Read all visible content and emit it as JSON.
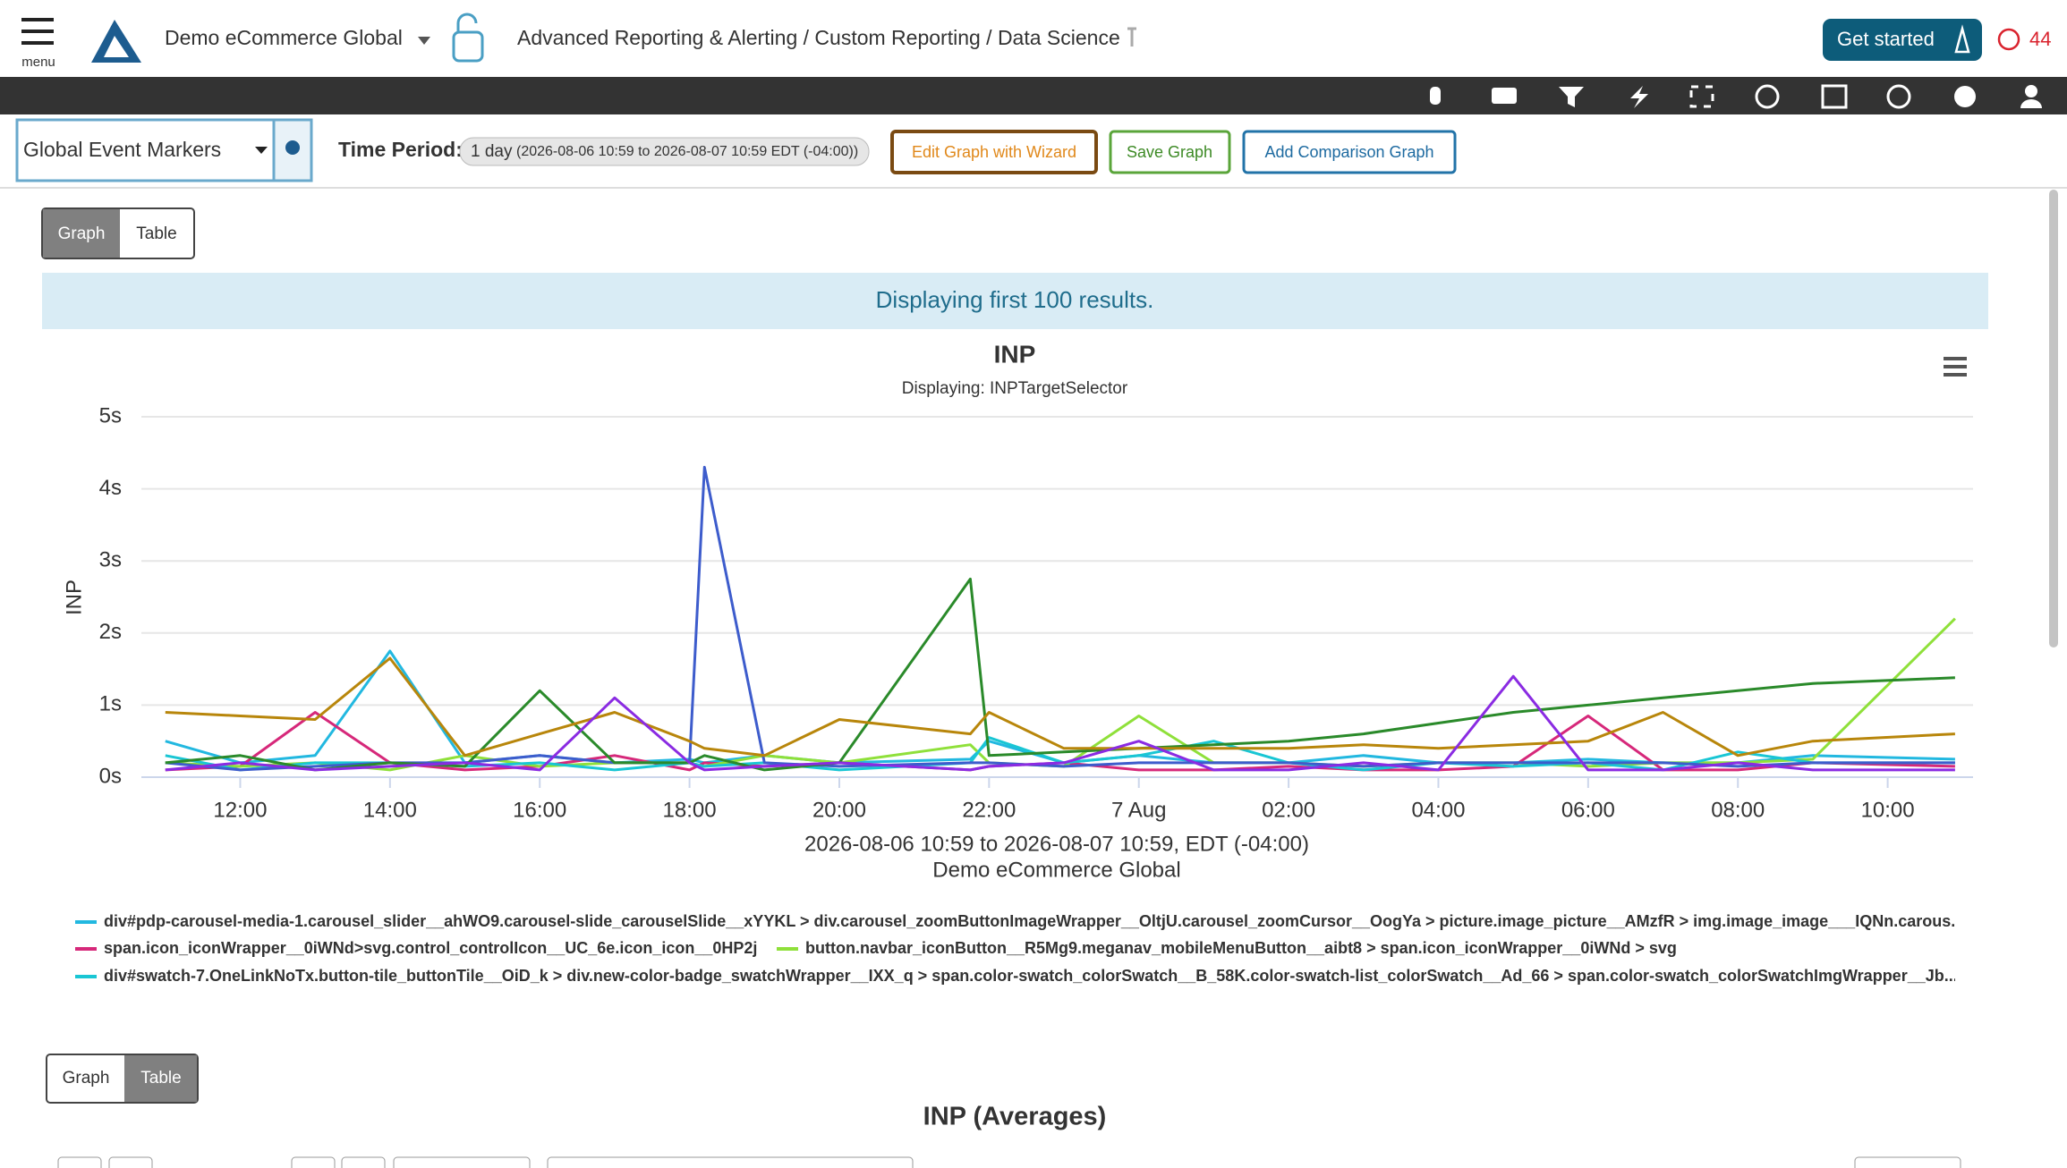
{
  "header": {
    "menu": "menu",
    "account": "Demo eCommerce Global",
    "breadcrumb": "Advanced Reporting & Alerting / Custom Reporting / Data Science",
    "get_started": "Get started",
    "alert_count": "44"
  },
  "toolbar": {
    "markers": "Global Event Markers",
    "time_period_label": "Time Period:",
    "time_period": "1 day",
    "time_range": "(2026-08-06 10:59 to 2026-08-07 10:59 EDT (-04:00))",
    "buttons": [
      "Edit Graph with Wizard",
      "Save Graph",
      "Add Comparison Graph"
    ]
  },
  "view_toggle": [
    "Graph",
    "Table"
  ],
  "notice": "Displaying first 100 results.",
  "chart_data": {
    "type": "line",
    "title": "INP",
    "subtitle": "Displaying: INPTargetSelector",
    "y_label": "INP",
    "x_label": "2026-08-06 10:59 to 2026-08-07 10:59, EDT (-04:00)",
    "x_sublabel": "Demo eCommerce Global",
    "x": [
      11,
      12,
      13,
      14,
      15,
      16,
      17,
      18,
      18.2,
      19,
      20,
      21.75,
      22,
      23,
      24,
      25,
      26,
      27,
      28,
      29,
      30,
      31,
      32,
      33,
      34.9
    ],
    "xlim": [
      10.68,
      35.14
    ],
    "xticks": [
      {
        "value": 12,
        "label": "12:00"
      },
      {
        "value": 14,
        "label": "14:00"
      },
      {
        "value": 16,
        "label": "16:00"
      },
      {
        "value": 18,
        "label": "18:00"
      },
      {
        "value": 20,
        "label": "20:00"
      },
      {
        "value": 22,
        "label": "22:00"
      },
      {
        "value": 24,
        "label": "7 Aug"
      },
      {
        "value": 26,
        "label": "02:00"
      },
      {
        "value": 28,
        "label": "04:00"
      },
      {
        "value": 30,
        "label": "06:00"
      },
      {
        "value": 32,
        "label": "08:00"
      },
      {
        "value": 34,
        "label": "10:00"
      }
    ],
    "ylim": [
      0,
      5
    ],
    "yticks": [
      {
        "value": 0,
        "label": "0s"
      },
      {
        "value": 1,
        "label": "1s"
      },
      {
        "value": 2,
        "label": "2s"
      },
      {
        "value": 3,
        "label": "3s"
      },
      {
        "value": 4,
        "label": "4s"
      },
      {
        "value": 5,
        "label": "5s"
      }
    ],
    "grid": true,
    "series": [
      {
        "name": "div#pdp-carousel-media-1.carousel_slider__ahWO9.carousel-slide_carouselSlide__xYYKL > div.carousel_zoomButtonImageWrapper__OltjU.carousel_zoomCursor__OogYa > picture.image_picture__AMzfR > img.image_image___IQNn.carous...",
        "color": "#22b8e0",
        "values": [
          0.5,
          0.2,
          0.3,
          1.75,
          0.2,
          0.3,
          0.2,
          0.25,
          0.2,
          0.3,
          0.2,
          0.25,
          0.5,
          0.2,
          0.3,
          0.2,
          0.2,
          0.3,
          0.2,
          0.2,
          0.25,
          0.2,
          0.2,
          0.3,
          0.25
        ]
      },
      {
        "name": "span.icon_iconWrapper__0iWNd>svg.control_controlIcon__UC_6e.icon_icon__0HP2j",
        "color": "#d6287a",
        "values": [
          0.1,
          0.15,
          0.9,
          0.2,
          0.1,
          0.15,
          0.3,
          0.1,
          0.2,
          0.15,
          0.2,
          0.1,
          0.15,
          0.2,
          0.1,
          0.1,
          0.15,
          0.1,
          0.1,
          0.15,
          0.85,
          0.1,
          0.1,
          0.2,
          0.15
        ]
      },
      {
        "name": "button.navbar_iconButton__R5Mg9.meganav_mobileMenuButton__aibt8 > span.icon_iconWrapper__0iWNd > svg",
        "color": "#8fe03a",
        "values": [
          0.2,
          0.15,
          0.2,
          0.1,
          0.3,
          0.15,
          0.2,
          0.2,
          0.15,
          0.3,
          0.2,
          0.45,
          0.2,
          0.15,
          0.85,
          0.2,
          0.2,
          0.15,
          0.2,
          0.2,
          0.15,
          0.2,
          0.2,
          0.25,
          2.2
        ]
      },
      {
        "name": "div#swatch-7.OneLinkNoTx.button-tile_buttonTile__OiD_k > div.new-color-badge_swatchWrapper__IXX_q > span.color-swatch_colorSwatch__B_58K.color-swatch-list_colorSwatch__Ad_66 > span.color-swatch_colorSwatchImgWrapper__Jb...",
        "color": "#19c6d4",
        "values": [
          0.3,
          0.1,
          0.2,
          0.2,
          0.15,
          0.2,
          0.1,
          0.2,
          0.15,
          0.2,
          0.1,
          0.2,
          0.55,
          0.2,
          0.3,
          0.5,
          0.2,
          0.1,
          0.2,
          0.15,
          0.2,
          0.1,
          0.35,
          0.2,
          0.2
        ]
      },
      {
        "color": "#3d5ccc",
        "values": [
          0.2,
          0.1,
          0.15,
          0.2,
          0.2,
          0.3,
          0.2,
          0.2,
          4.3,
          0.2,
          0.15,
          0.2,
          0.2,
          0.15,
          0.2,
          0.2,
          0.2,
          0.15,
          0.2,
          0.2,
          0.2,
          0.2,
          0.15,
          0.2,
          0.2
        ]
      },
      {
        "color": "#2a8a2a",
        "values": [
          0.2,
          0.3,
          0.1,
          0.2,
          0.15,
          1.2,
          0.2,
          0.2,
          0.3,
          0.1,
          0.2,
          2.75,
          0.3,
          0.35,
          0.4,
          0.45,
          0.5,
          0.6,
          0.75,
          0.9,
          1.0,
          1.1,
          1.2,
          1.3,
          1.38
        ]
      },
      {
        "color": "#b8860b",
        "values": [
          0.9,
          0.85,
          0.8,
          1.65,
          0.3,
          0.6,
          0.9,
          0.5,
          0.4,
          0.3,
          0.8,
          0.6,
          0.9,
          0.4,
          0.4,
          0.4,
          0.4,
          0.45,
          0.4,
          0.45,
          0.5,
          0.9,
          0.3,
          0.5,
          0.6
        ]
      },
      {
        "color": "#8a2be2",
        "values": [
          0.1,
          0.2,
          0.1,
          0.15,
          0.2,
          0.1,
          1.1,
          0.2,
          0.1,
          0.15,
          0.2,
          0.1,
          0.15,
          0.2,
          0.5,
          0.1,
          0.1,
          0.2,
          0.1,
          1.4,
          0.1,
          0.1,
          0.2,
          0.1,
          0.1
        ]
      }
    ]
  },
  "table_section": {
    "view_toggle": [
      "Graph",
      "Table"
    ],
    "title": "INP (Averages)"
  }
}
